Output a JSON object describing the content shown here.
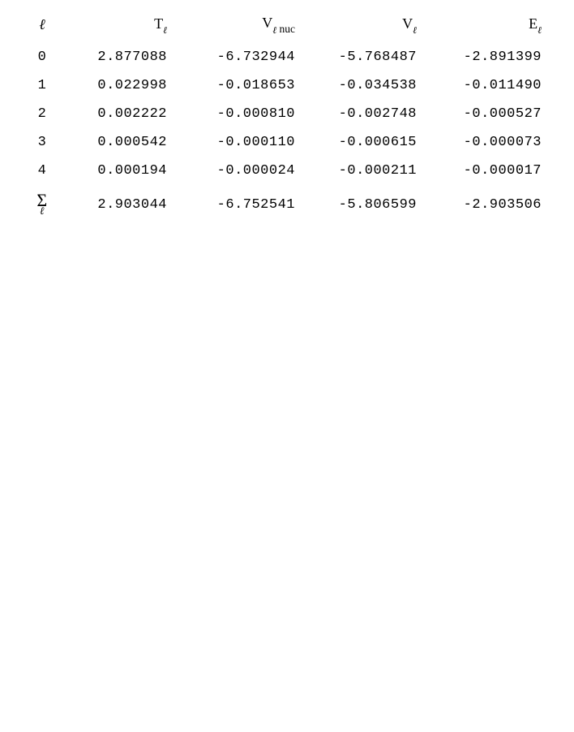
{
  "table": {
    "background_color": "#ffffff",
    "text_color": "#000000",
    "value_font": "Courier New",
    "header_font": "Times New Roman",
    "value_fontsize": 17,
    "header_fontsize": 18,
    "columns": {
      "l": {
        "label": "ℓ"
      },
      "T": {
        "label_main": "T",
        "label_sub": "ℓ"
      },
      "Vn": {
        "label_main": "V",
        "label_sub": "ℓ",
        "label_extra": " nuc"
      },
      "V": {
        "label_main": "V",
        "label_sub": "ℓ"
      },
      "E": {
        "label_main": "E",
        "label_sub": "ℓ"
      }
    },
    "rows": [
      {
        "l": "0",
        "T": "2.877088",
        "Vn": "-6.732944",
        "V": "-5.768487",
        "E": "-2.891399"
      },
      {
        "l": "1",
        "T": "0.022998",
        "Vn": "-0.018653",
        "V": "-0.034538",
        "E": "-0.011490"
      },
      {
        "l": "2",
        "T": "0.002222",
        "Vn": "-0.000810",
        "V": "-0.002748",
        "E": "-0.000527"
      },
      {
        "l": "3",
        "T": "0.000542",
        "Vn": "-0.000110",
        "V": "-0.000615",
        "E": "-0.000073"
      },
      {
        "l": "4",
        "T": "0.000194",
        "Vn": "-0.000024",
        "V": "-0.000211",
        "E": "-0.000017"
      }
    ],
    "sum_row": {
      "symbol": "Σ",
      "symbol_sub": "ℓ",
      "T": "2.903044",
      "Vn": "-6.752541",
      "V": "-5.806599",
      "E": "-2.903506"
    }
  }
}
